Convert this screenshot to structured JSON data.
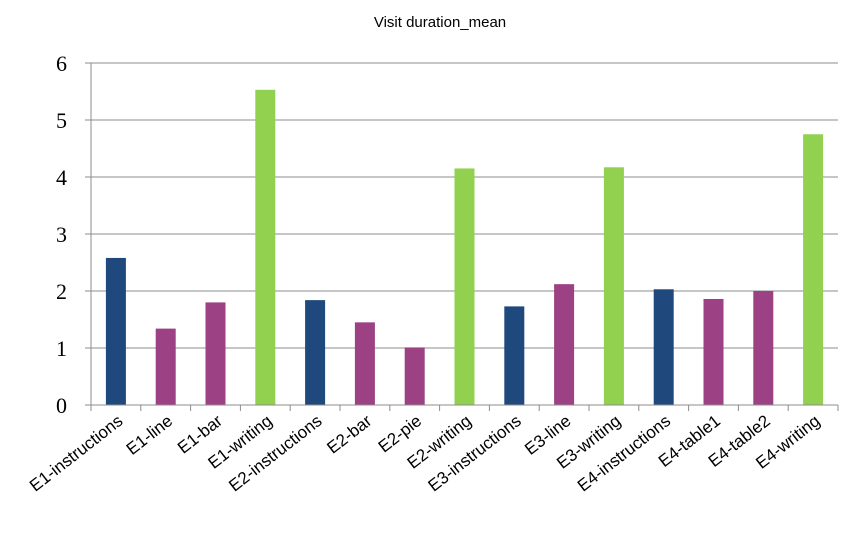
{
  "chart_data": {
    "type": "bar",
    "title": "Visit duration_mean",
    "xlabel": "",
    "ylabel": "",
    "ylim": [
      0,
      6
    ],
    "yticks": [
      0,
      1,
      2,
      3,
      4,
      5,
      6
    ],
    "grid": true,
    "legend": "none",
    "categories": [
      "E1-instructions",
      "E1-line",
      "E1-bar",
      "E1-writing",
      "E2-instructions",
      "E2-bar",
      "E2-pie",
      "E2-writing",
      "E3-instructions",
      "E3-line",
      "E3-writing",
      "E4-instructions",
      "E4-table1",
      "E4-table2",
      "E4-writing"
    ],
    "values": [
      2.58,
      1.34,
      1.8,
      5.53,
      1.84,
      1.45,
      1.01,
      4.15,
      1.73,
      2.12,
      4.17,
      2.03,
      1.86,
      2.0,
      4.75
    ],
    "colors": [
      "#1f497d",
      "#9b4184",
      "#9b4184",
      "#92d050",
      "#1f497d",
      "#9b4184",
      "#9b4184",
      "#92d050",
      "#1f497d",
      "#9b4184",
      "#92d050",
      "#1f497d",
      "#9b4184",
      "#9b4184",
      "#92d050"
    ]
  }
}
